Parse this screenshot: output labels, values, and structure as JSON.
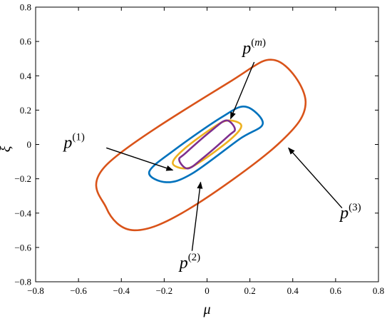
{
  "chart_data": {
    "type": "line",
    "title": "",
    "xlabel": "μ",
    "ylabel": "ξ",
    "xlim": [
      -0.8,
      0.8
    ],
    "ylim": [
      -0.8,
      0.8
    ],
    "xticks": [
      "−0.8",
      "−0.6",
      "−0.4",
      "−0.2",
      "0",
      "0.2",
      "0.4",
      "0.6",
      "0.8"
    ],
    "yticks": [
      "0.8",
      "0.6",
      "0.4",
      "0.2",
      "0",
      "−0.2",
      "−0.4",
      "−0.6",
      "−0.8"
    ],
    "xtick_values": [
      -0.8,
      -0.6,
      -0.4,
      -0.2,
      0,
      0.2,
      0.4,
      0.6,
      0.8
    ],
    "ytick_values": [
      0.8,
      0.6,
      0.4,
      0.2,
      0,
      -0.2,
      -0.4,
      -0.6,
      -0.8
    ],
    "grid": false,
    "series": [
      {
        "label": "p(3)",
        "color": "#D95319",
        "points": [
          [
            0.46,
            0.25
          ],
          [
            0.32,
            0.49
          ],
          [
            0.1,
            0.36
          ],
          [
            -0.47,
            -0.12
          ],
          [
            -0.47,
            -0.37
          ],
          [
            -0.34,
            -0.5
          ],
          [
            -0.09,
            -0.38
          ],
          [
            0.33,
            0.0
          ]
        ]
      },
      {
        "label": "p(2)",
        "color": "#0072BD",
        "points": [
          [
            0.26,
            0.12
          ],
          [
            0.18,
            0.22
          ],
          [
            0.07,
            0.16
          ],
          [
            -0.15,
            -0.03
          ],
          [
            -0.27,
            -0.16
          ],
          [
            -0.19,
            -0.22
          ],
          [
            -0.07,
            -0.17
          ],
          [
            0.15,
            0.03
          ]
        ]
      },
      {
        "label": "p(m)",
        "color": "#EDB120",
        "points": [
          [
            0.16,
            0.11
          ],
          [
            0.1,
            0.14
          ],
          [
            0.03,
            0.1
          ],
          [
            -0.11,
            -0.03
          ],
          [
            -0.16,
            -0.11
          ],
          [
            -0.1,
            -0.14
          ],
          [
            -0.03,
            -0.1
          ],
          [
            0.11,
            0.03
          ]
        ]
      },
      {
        "label": "p(1)",
        "color": "#7E2F8E",
        "points": [
          [
            0.13,
            0.09
          ],
          [
            0.09,
            0.14
          ],
          [
            0.02,
            0.08
          ],
          [
            -0.1,
            -0.05
          ],
          [
            -0.13,
            -0.09
          ],
          [
            -0.09,
            -0.14
          ],
          [
            -0.02,
            -0.08
          ],
          [
            0.1,
            0.05
          ]
        ]
      }
    ],
    "annotations": [
      {
        "base": "p",
        "sup": "(m)",
        "sup_italic_letter": "m",
        "text_at": [
          0.22,
          0.53
        ],
        "arrow_from": [
          0.22,
          0.48
        ],
        "arrow_to": [
          0.11,
          0.15
        ]
      },
      {
        "base": "p",
        "sup": "(1)",
        "text_at": [
          -0.62,
          -0.02
        ],
        "arrow_from": [
          -0.47,
          -0.02
        ],
        "arrow_to": [
          -0.16,
          -0.15
        ]
      },
      {
        "base": "p",
        "sup": "(2)",
        "text_at": [
          -0.08,
          -0.72
        ],
        "arrow_from": [
          -0.07,
          -0.62
        ],
        "arrow_to": [
          -0.03,
          -0.22
        ]
      },
      {
        "base": "p",
        "sup": "(3)",
        "text_at": [
          0.67,
          -0.43
        ],
        "arrow_from": [
          0.63,
          -0.37
        ],
        "arrow_to": [
          0.38,
          -0.02
        ]
      }
    ]
  }
}
